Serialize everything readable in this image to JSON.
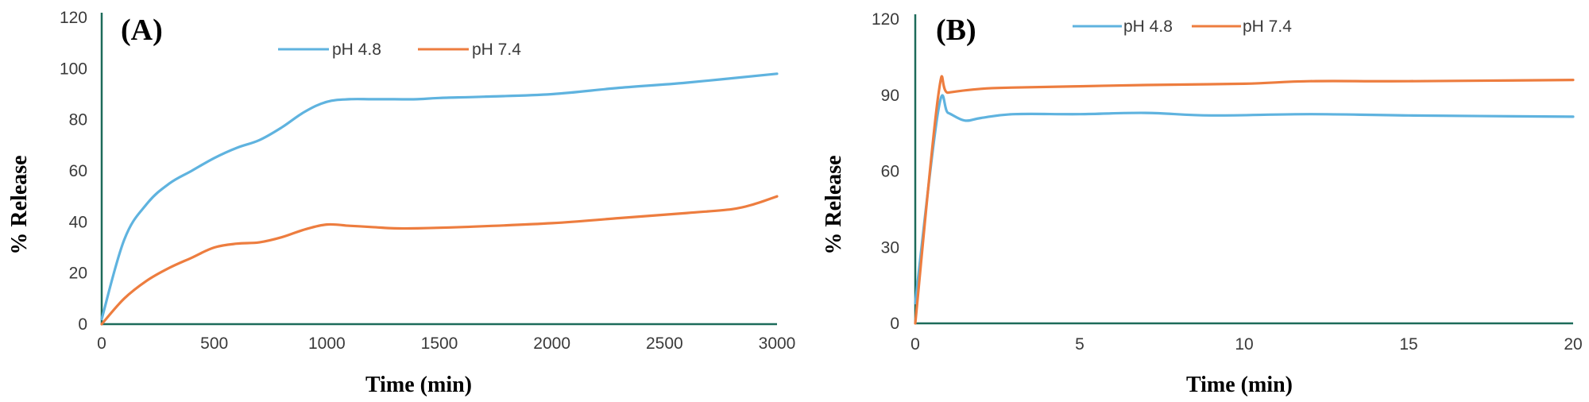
{
  "chart_data": [
    {
      "type": "line",
      "panel_label": "(A)",
      "title": "",
      "xlabel": "Time (min)",
      "ylabel": "% Release",
      "xlim": [
        0,
        3000
      ],
      "ylim": [
        0,
        120
      ],
      "xticks": [
        0,
        500,
        1000,
        1500,
        2000,
        2500,
        3000
      ],
      "yticks": [
        0,
        20,
        40,
        60,
        80,
        100,
        120
      ],
      "grid": false,
      "legend_position": "top-center",
      "series": [
        {
          "name": "pH 4.8",
          "color": "#5fb3df",
          "x": [
            0,
            100,
            200,
            300,
            400,
            500,
            600,
            700,
            800,
            900,
            1000,
            1100,
            1200,
            1300,
            1400,
            1500,
            1700,
            2000,
            2300,
            2600,
            3000
          ],
          "y": [
            2,
            33,
            47,
            55,
            60,
            65,
            69,
            72,
            77,
            83,
            87,
            88,
            88,
            88,
            88,
            88.5,
            89,
            90,
            92.5,
            94.5,
            98
          ]
        },
        {
          "name": "pH 7.4",
          "color": "#ed7d3f",
          "x": [
            0,
            100,
            200,
            300,
            400,
            500,
            600,
            700,
            800,
            900,
            1000,
            1100,
            1200,
            1300,
            1400,
            1600,
            2000,
            2300,
            2600,
            2800,
            2900,
            3000
          ],
          "y": [
            0,
            10,
            17,
            22,
            26,
            30,
            31.5,
            32,
            34,
            37,
            39,
            38.5,
            38,
            37.5,
            37.5,
            38,
            39.5,
            41.5,
            43.5,
            45,
            47,
            50
          ]
        }
      ]
    },
    {
      "type": "line",
      "panel_label": "(B)",
      "title": "",
      "xlabel": "Time (min)",
      "ylabel": "% Release",
      "xlim": [
        0,
        20
      ],
      "ylim": [
        0,
        120
      ],
      "xticks": [
        0,
        5,
        10,
        15,
        20
      ],
      "yticks": [
        0,
        30,
        60,
        90,
        120
      ],
      "grid": false,
      "legend_position": "top-center",
      "series": [
        {
          "name": "pH 4.8",
          "color": "#5fb3df",
          "x": [
            0,
            0.7,
            1.0,
            1.5,
            2.0,
            3.0,
            5.0,
            7.0,
            9.0,
            12.0,
            15.0,
            20.0
          ],
          "y": [
            8,
            84,
            83,
            80,
            81,
            82.5,
            82.5,
            83,
            82,
            82.5,
            82,
            81.5
          ]
        },
        {
          "name": "pH 7.4",
          "color": "#ed7d3f",
          "x": [
            0,
            0.7,
            1.0,
            2.0,
            3.0,
            5.0,
            7.0,
            10.0,
            12.0,
            15.0,
            20.0
          ],
          "y": [
            0,
            90,
            91,
            92.5,
            93,
            93.5,
            94,
            94.5,
            95.5,
            95.5,
            96
          ]
        }
      ]
    }
  ]
}
